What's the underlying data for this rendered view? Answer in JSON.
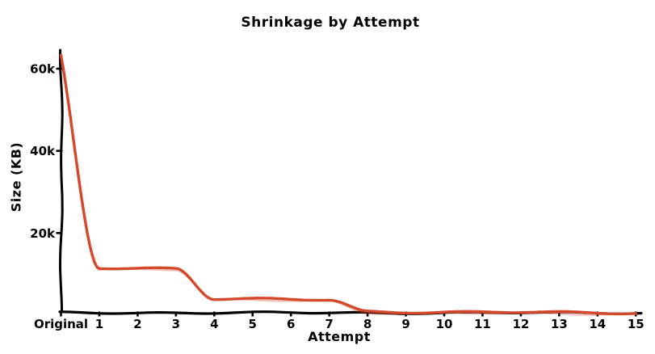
{
  "page": {
    "background_color": "#ffffff",
    "text_color": "#000000"
  },
  "chart_data": {
    "type": "line",
    "style": "xkcd-hand-drawn",
    "title": "Shrinkage by Attempt",
    "xlabel": "Attempt",
    "ylabel": "Size (KB)",
    "grid": false,
    "legend": "none",
    "axis_color": "#000000",
    "categories": [
      "Original",
      "1",
      "2",
      "3",
      "4",
      "5",
      "6",
      "7",
      "8",
      "9",
      "10",
      "11",
      "12",
      "13",
      "14",
      "15"
    ],
    "y_ticks": {
      "values": [
        20000,
        40000,
        60000
      ],
      "labels": [
        "20k",
        "40k",
        "60k"
      ]
    },
    "ylim": [
      0,
      64000
    ],
    "series": [
      {
        "name": "Size (KB)",
        "color": "#d4482b",
        "values": [
          63000,
          11500,
          11500,
          11400,
          4000,
          3900,
          3800,
          3700,
          900,
          800,
          750,
          700,
          700,
          650,
          600,
          600
        ]
      }
    ]
  }
}
